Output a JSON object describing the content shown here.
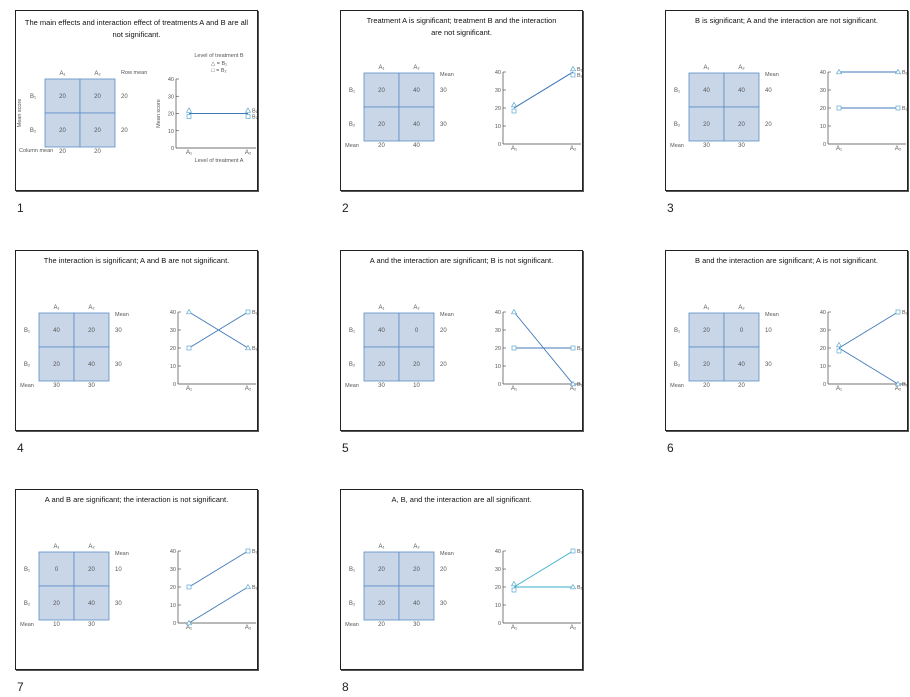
{
  "colors": {
    "cell_fill": "#c9d6e8",
    "cell_border": "#5b8cc4",
    "line": "#3f78b8",
    "line_teal": "#3aaecb",
    "marker": "#5aa8d0"
  },
  "labels": {
    "a1": "A₁",
    "a2": "A₂",
    "b1": "B₁",
    "b2": "B₂",
    "mean": "Mean",
    "row_mean": "Row mean",
    "column_mean": "Column mean",
    "mean_score": "Mean score",
    "legend_title": "Level of treatment B",
    "legend_b1": "△ = B₁",
    "legend_b2": "□ = B₂",
    "x_label": "Level of treatment A",
    "y_ticks": [
      "0",
      "10",
      "20",
      "30",
      "40"
    ]
  },
  "slides": [
    {
      "number": "1",
      "title": "The main effects and interaction effect of treatments A and B are all not significant.",
      "b1": [
        20,
        20
      ],
      "b2": [
        20,
        20
      ],
      "row_means": [
        20,
        20
      ],
      "col_means": [
        20,
        20
      ],
      "detailed": true
    },
    {
      "number": "2",
      "title": "Treatment A is significant; treatment B and the interaction are not significant.",
      "b1": [
        20,
        40
      ],
      "b2": [
        20,
        40
      ],
      "row_means": [
        30,
        30
      ],
      "col_means": [
        20,
        40
      ]
    },
    {
      "number": "3",
      "title": "B is significant; A and the interaction are not significant.",
      "b1": [
        40,
        40
      ],
      "b2": [
        20,
        20
      ],
      "row_means": [
        40,
        20
      ],
      "col_means": [
        30,
        30
      ]
    },
    {
      "number": "4",
      "title": "The interaction is significant; A and B are not significant.",
      "b1": [
        40,
        20
      ],
      "b2": [
        20,
        40
      ],
      "row_means": [
        30,
        30
      ],
      "col_means": [
        30,
        30
      ]
    },
    {
      "number": "5",
      "title": "A and the interaction are significant; B is not significant.",
      "b1": [
        40,
        0
      ],
      "b2": [
        20,
        20
      ],
      "row_means": [
        20,
        20
      ],
      "col_means": [
        30,
        10
      ]
    },
    {
      "number": "6",
      "title": "B and the interaction are significant; A is not significant.",
      "b1": [
        20,
        0
      ],
      "b2": [
        20,
        40
      ],
      "row_means": [
        10,
        30
      ],
      "col_means": [
        20,
        20
      ]
    },
    {
      "number": "7",
      "title": "A and B are significant; the interaction is not significant.",
      "b1": [
        0,
        20
      ],
      "b2": [
        20,
        40
      ],
      "row_means": [
        10,
        30
      ],
      "col_means": [
        10,
        30
      ]
    },
    {
      "number": "8",
      "title": "A, B, and the interaction are all significant.",
      "b1": [
        20,
        20
      ],
      "b2": [
        20,
        40
      ],
      "row_means": [
        20,
        30
      ],
      "col_means": [
        20,
        30
      ],
      "teal": true
    }
  ]
}
